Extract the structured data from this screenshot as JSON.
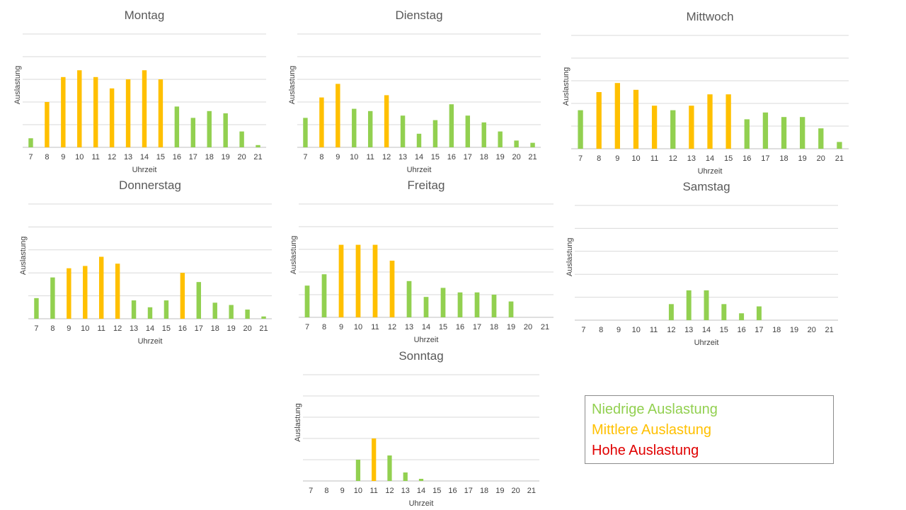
{
  "legend": {
    "items": [
      {
        "label": "Niedrige Auslastung",
        "color": "#92d050"
      },
      {
        "label": "Mittlere Auslastung",
        "color": "#ffc000"
      },
      {
        "label": "Hohe Auslastung",
        "color": "#e00000"
      }
    ]
  },
  "chart_data": [
    {
      "type": "bar",
      "title": "Montag",
      "xlabel": "Uhrzeit",
      "ylabel": "Auslastung",
      "categories": [
        "7",
        "8",
        "9",
        "10",
        "11",
        "12",
        "13",
        "14",
        "15",
        "16",
        "17",
        "18",
        "19",
        "20",
        "21"
      ],
      "values": [
        8,
        40,
        62,
        68,
        62,
        52,
        60,
        68,
        60,
        36,
        26,
        32,
        30,
        14,
        2
      ],
      "levels": [
        "low",
        "medium",
        "medium",
        "medium",
        "medium",
        "medium",
        "medium",
        "medium",
        "medium",
        "low",
        "low",
        "low",
        "low",
        "low",
        "low"
      ],
      "ylim": [
        0,
        100
      ],
      "grid": true
    },
    {
      "type": "bar",
      "title": "Dienstag",
      "xlabel": "Uhrzeit",
      "ylabel": "Auslastung",
      "categories": [
        "7",
        "8",
        "9",
        "10",
        "11",
        "12",
        "13",
        "14",
        "15",
        "16",
        "17",
        "18",
        "19",
        "20",
        "21"
      ],
      "values": [
        26,
        44,
        56,
        34,
        32,
        46,
        28,
        12,
        24,
        38,
        28,
        22,
        14,
        6,
        4
      ],
      "levels": [
        "low",
        "medium",
        "medium",
        "low",
        "low",
        "medium",
        "low",
        "low",
        "low",
        "low",
        "low",
        "low",
        "low",
        "low",
        "low"
      ],
      "ylim": [
        0,
        100
      ],
      "grid": true
    },
    {
      "type": "bar",
      "title": "Mittwoch",
      "xlabel": "Uhrzeit",
      "ylabel": "Auslastung",
      "categories": [
        "7",
        "8",
        "9",
        "10",
        "11",
        "12",
        "13",
        "14",
        "15",
        "16",
        "17",
        "18",
        "19",
        "20",
        "21"
      ],
      "values": [
        34,
        50,
        58,
        52,
        38,
        34,
        38,
        48,
        48,
        26,
        32,
        28,
        28,
        18,
        6
      ],
      "levels": [
        "low",
        "medium",
        "medium",
        "medium",
        "medium",
        "low",
        "medium",
        "medium",
        "medium",
        "low",
        "low",
        "low",
        "low",
        "low",
        "low"
      ],
      "ylim": [
        0,
        100
      ],
      "grid": true
    },
    {
      "type": "bar",
      "title": "Donnerstag",
      "xlabel": "Uhrzeit",
      "ylabel": "Auslastung",
      "categories": [
        "7",
        "8",
        "9",
        "10",
        "11",
        "12",
        "13",
        "14",
        "15",
        "16",
        "17",
        "18",
        "19",
        "20",
        "21"
      ],
      "values": [
        18,
        36,
        44,
        46,
        54,
        48,
        16,
        10,
        16,
        40,
        32,
        14,
        12,
        8,
        2
      ],
      "levels": [
        "low",
        "low",
        "medium",
        "medium",
        "medium",
        "medium",
        "low",
        "low",
        "low",
        "medium",
        "low",
        "low",
        "low",
        "low",
        "low"
      ],
      "ylim": [
        0,
        100
      ],
      "grid": true
    },
    {
      "type": "bar",
      "title": "Freitag",
      "xlabel": "Uhrzeit",
      "ylabel": "Auslastung",
      "categories": [
        "7",
        "8",
        "9",
        "10",
        "11",
        "12",
        "13",
        "14",
        "15",
        "16",
        "17",
        "18",
        "19",
        "20",
        "21"
      ],
      "values": [
        28,
        38,
        64,
        64,
        64,
        50,
        32,
        18,
        26,
        22,
        22,
        20,
        14,
        0,
        0
      ],
      "levels": [
        "low",
        "low",
        "medium",
        "medium",
        "medium",
        "medium",
        "low",
        "low",
        "low",
        "low",
        "low",
        "low",
        "low",
        "low",
        "low"
      ],
      "ylim": [
        0,
        100
      ],
      "grid": true
    },
    {
      "type": "bar",
      "title": "Samstag",
      "xlabel": "Uhrzeit",
      "ylabel": "Auslastung",
      "categories": [
        "7",
        "8",
        "9",
        "10",
        "11",
        "12",
        "13",
        "14",
        "15",
        "16",
        "17",
        "18",
        "19",
        "20",
        "21"
      ],
      "values": [
        0,
        0,
        0,
        0,
        0,
        14,
        26,
        26,
        14,
        6,
        12,
        0,
        0,
        0,
        0
      ],
      "levels": [
        "low",
        "low",
        "low",
        "low",
        "low",
        "low",
        "low",
        "low",
        "low",
        "low",
        "low",
        "low",
        "low",
        "low",
        "low"
      ],
      "ylim": [
        0,
        100
      ],
      "grid": true
    },
    {
      "type": "bar",
      "title": "Sonntag",
      "xlabel": "Uhrzeit",
      "ylabel": "Auslastung",
      "categories": [
        "7",
        "8",
        "9",
        "10",
        "11",
        "12",
        "13",
        "14",
        "15",
        "16",
        "17",
        "18",
        "19",
        "20",
        "21"
      ],
      "values": [
        0,
        0,
        0,
        20,
        40,
        24,
        8,
        2,
        0,
        0,
        0,
        0,
        0,
        0,
        0
      ],
      "levels": [
        "low",
        "low",
        "low",
        "low",
        "medium",
        "low",
        "low",
        "low",
        "low",
        "low",
        "low",
        "low",
        "low",
        "low",
        "low"
      ],
      "ylim": [
        0,
        100
      ],
      "grid": true
    }
  ]
}
